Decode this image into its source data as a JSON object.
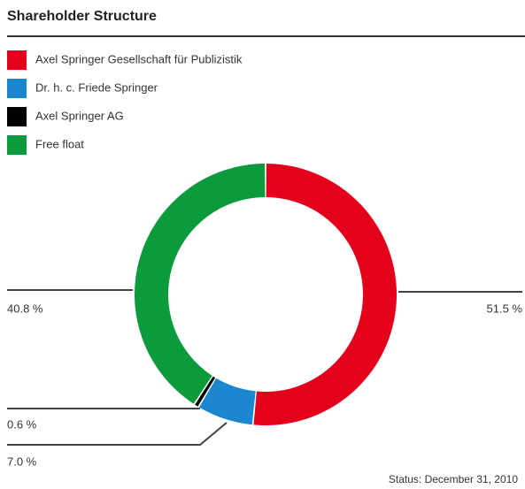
{
  "chart_data": {
    "type": "donut",
    "title": "Shareholder Structure",
    "categories": [
      "Axel Springer Gesellschaft für Publizistik",
      "Dr. h. c. Friede Springer",
      "Axel Springer AG",
      "Free float"
    ],
    "values": [
      51.5,
      7.0,
      0.6,
      40.8
    ],
    "value_labels": [
      "51.5 %",
      "7.0 %",
      "0.6 %",
      "40.8 %"
    ],
    "colors": [
      "#e2001a",
      "#1a87d0",
      "#000000",
      "#0b9a3c"
    ],
    "footnote": "Status: December 31, 2010"
  }
}
